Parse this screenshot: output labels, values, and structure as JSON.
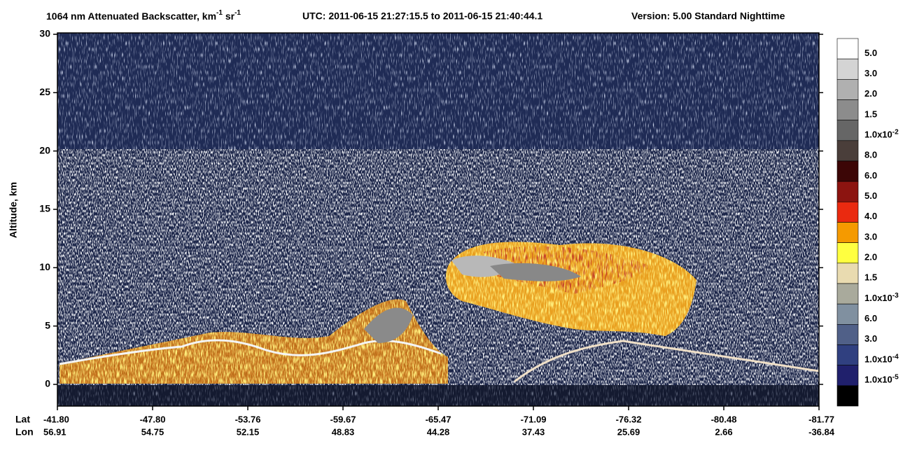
{
  "chart_data": {
    "type": "heatmap",
    "title": {
      "parts": [
        {
          "text": "1064 nm Attenuated Backscatter, km"
        },
        {
          "sup": "-1"
        },
        {
          "text": " sr"
        },
        {
          "sup": "-1"
        }
      ]
    },
    "time_range": "UTC:  2011-06-15 21:27:15.5  to  2011-06-15 21:40:44.1",
    "version": "Version: 5.00  Standard  Nighttime",
    "y_label": "Altitude, km",
    "ylim": [
      -1.86,
      30.12
    ],
    "yticks": [
      0,
      5,
      10,
      15,
      20,
      25,
      30
    ],
    "x_row_labels": [
      "Lat",
      "Lon"
    ],
    "lat": [
      "-41.80",
      "-47.80",
      "-53.76",
      "-59.67",
      "-65.47",
      "-71.09",
      "-76.32",
      "-80.48",
      "-81.77"
    ],
    "lon": [
      "56.91",
      "54.75",
      "52.15",
      "48.83",
      "44.28",
      "37.43",
      "25.69",
      "2.66",
      "-36.84"
    ],
    "colorbar": {
      "colors": [
        "#ffffff",
        "#d4d4d4",
        "#b0b0b0",
        "#8c8c8c",
        "#666666",
        "#4a3e3a",
        "#3c0606",
        "#8c1410",
        "#ea2a10",
        "#f59a00",
        "#ffff40",
        "#e9dbb0",
        "#a9aa9c",
        "#8090a0",
        "#506088",
        "#304080",
        "#20206c",
        "#000000"
      ],
      "labels": [
        {
          "text": "5.0"
        },
        {
          "text": "3.0"
        },
        {
          "text": "2.0"
        },
        {
          "text": "1.5"
        },
        {
          "text": "1.0x10",
          "sup": "-2"
        },
        {
          "text": "8.0"
        },
        {
          "text": "6.0"
        },
        {
          "text": "5.0"
        },
        {
          "text": "4.0"
        },
        {
          "text": "3.0"
        },
        {
          "text": "2.0"
        },
        {
          "text": "1.5"
        },
        {
          "text": "1.0x10",
          "sup": "-3"
        },
        {
          "text": "6.0"
        },
        {
          "text": "3.0"
        },
        {
          "text": "1.0x10",
          "sup": "-4"
        },
        {
          "text": "1.0x10",
          "sup": "-5"
        }
      ]
    }
  }
}
